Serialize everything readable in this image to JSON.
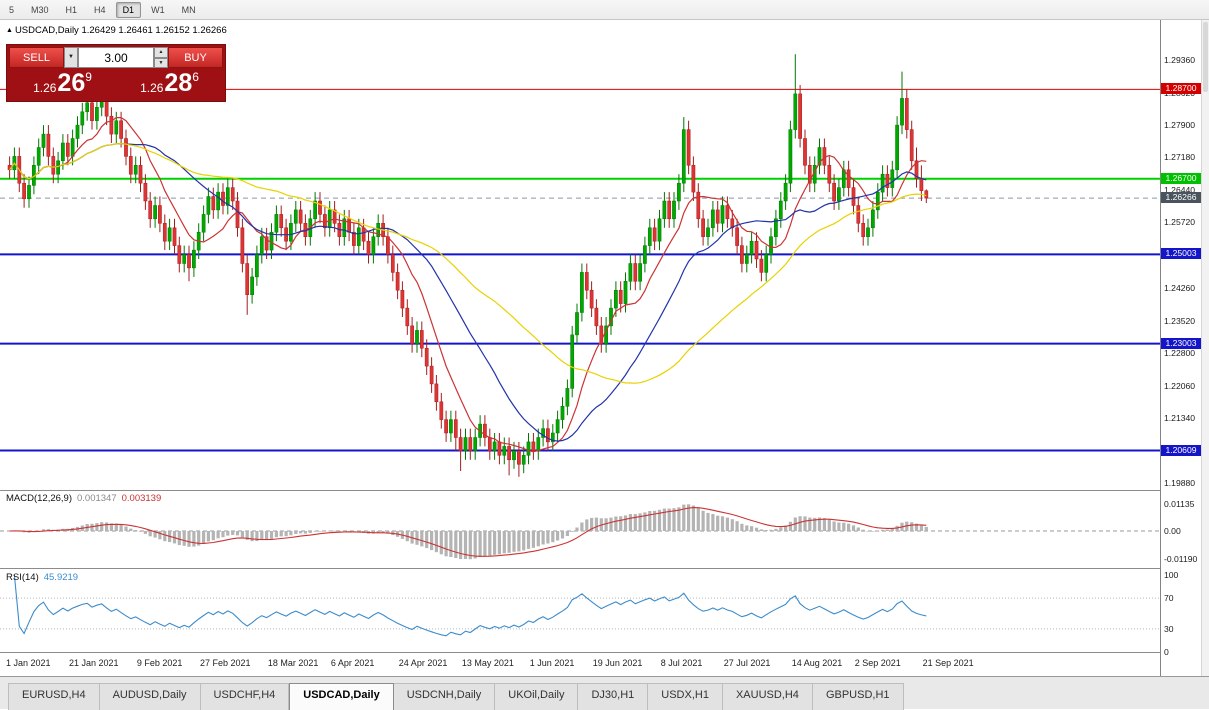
{
  "toolbar": {
    "periods": [
      "5",
      "M30",
      "H1",
      "H4",
      "D1",
      "W1",
      "MN"
    ],
    "active": "D1"
  },
  "chart_header": {
    "icon": "▲",
    "symbol": "USDCAD,Daily",
    "ohlc": "1.26429 1.26461 1.26152 1.26266"
  },
  "trade_panel": {
    "sell_label": "SELL",
    "buy_label": "BUY",
    "volume": "3.00",
    "sell_price": {
      "prefix": "1.26",
      "big": "26",
      "sup": "9"
    },
    "buy_price": {
      "prefix": "1.26",
      "big": "28",
      "sup": "6"
    }
  },
  "indicators": {
    "macd": {
      "label": "MACD(12,26,9)",
      "value1": "0.001347",
      "value2": "0.003139",
      "axis": [
        "0.01135",
        "0.00",
        "-0.01190"
      ]
    },
    "rsi": {
      "label": "RSI(14)",
      "value": "45.9219",
      "axis": [
        "100",
        "70",
        "30",
        "0"
      ],
      "levels": [
        70,
        30
      ]
    }
  },
  "price_axis": {
    "grid_labels": [
      "1.29360",
      "1.28620",
      "1.27900",
      "1.27180",
      "1.26440",
      "1.25720",
      "1.24980",
      "1.24260",
      "1.23520",
      "1.22800",
      "1.22060",
      "1.21340",
      "1.20620",
      "1.19880"
    ],
    "badges": [
      {
        "label": "1.28700",
        "color": "#d40000",
        "text": "#ffffff"
      },
      {
        "label": "1.26700",
        "color": "#00c000",
        "text": "#ffffff"
      },
      {
        "label": "1.26266",
        "color": "#4a545e",
        "text": "#ffffff"
      },
      {
        "label": "1.25003",
        "color": "#1414c8",
        "text": "#ffffff"
      },
      {
        "label": "1.23003",
        "color": "#1414c8",
        "text": "#ffffff"
      },
      {
        "label": "1.20609",
        "color": "#1414c8",
        "text": "#ffffff"
      }
    ]
  },
  "tabs": {
    "items": [
      "EURUSD,H4",
      "AUDUSD,Daily",
      "USDCHF,H4",
      "USDCAD,Daily",
      "USDCNH,Daily",
      "UKOil,Daily",
      "DJ30,H1",
      "USDX,H1",
      "XAUUSD,H4",
      "GBPUSD,H1"
    ],
    "active": "USDCAD,Daily"
  },
  "chart_data": {
    "type": "candlestick",
    "symbol": "USDCAD",
    "timeframe": "Daily",
    "ylim": [
      1.1988,
      1.2936
    ],
    "colors": {
      "bull": "#00a800",
      "bull_edge": "#007800",
      "bear": "#e03434",
      "bear_edge": "#a31d1d",
      "macd_hist": "#b4b4b4",
      "macd_signal": "#cc3333",
      "rsi": "#3c8ccc"
    },
    "levels": [
      {
        "price": 1.287,
        "color": "#e00000",
        "width": 1
      },
      {
        "price": 1.267,
        "color": "#00d200",
        "width": 2
      },
      {
        "price": 1.25003,
        "color": "#1414cc",
        "width": 2
      },
      {
        "price": 1.23003,
        "color": "#1414cc",
        "width": 2
      },
      {
        "price": 1.20609,
        "color": "#1414cc",
        "width": 2
      },
      {
        "price": 1.26266,
        "color": "#8a98a6",
        "width": 1,
        "dashed": true
      }
    ],
    "moving_averages": [
      {
        "period": 10,
        "color": "#cc3333"
      },
      {
        "period": 25,
        "color": "#2233aa"
      },
      {
        "period": 50,
        "color": "#e8d200"
      }
    ],
    "x_ticks": [
      {
        "d": 0,
        "label": "1 Jan 2021"
      },
      {
        "d": 13,
        "label": "21 Jan 2021"
      },
      {
        "d": 27,
        "label": "9 Feb 2021"
      },
      {
        "d": 40,
        "label": "27 Feb 2021"
      },
      {
        "d": 54,
        "label": "18 Mar 2021"
      },
      {
        "d": 67,
        "label": "6 Apr 2021"
      },
      {
        "d": 81,
        "label": "24 Apr 2021"
      },
      {
        "d": 94,
        "label": "13 May 2021"
      },
      {
        "d": 108,
        "label": "1 Jun 2021"
      },
      {
        "d": 121,
        "label": "19 Jun 2021"
      },
      {
        "d": 135,
        "label": "8 Jul 2021"
      },
      {
        "d": 148,
        "label": "27 Jul 2021"
      },
      {
        "d": 162,
        "label": "14 Aug 2021"
      },
      {
        "d": 175,
        "label": "2 Sep 2021"
      },
      {
        "d": 189,
        "label": "21 Sep 2021"
      }
    ],
    "candles": [
      [
        1.27,
        1.272,
        1.267,
        1.269
      ],
      [
        1.269,
        1.274,
        1.267,
        1.272
      ],
      [
        1.272,
        1.274,
        1.264,
        1.266
      ],
      [
        1.266,
        1.268,
        1.2605,
        1.2625
      ],
      [
        1.2625,
        1.2675,
        1.2605,
        1.2655
      ],
      [
        1.2655,
        1.272,
        1.2635,
        1.27
      ],
      [
        1.27,
        1.276,
        1.268,
        1.274
      ],
      [
        1.274,
        1.279,
        1.272,
        1.277
      ],
      [
        1.277,
        1.279,
        1.27,
        1.272
      ],
      [
        1.272,
        1.274,
        1.266,
        1.268
      ],
      [
        1.268,
        1.273,
        1.266,
        1.271
      ],
      [
        1.271,
        1.277,
        1.269,
        1.275
      ],
      [
        1.275,
        1.277,
        1.27,
        1.272
      ],
      [
        1.272,
        1.278,
        1.27,
        1.276
      ],
      [
        1.276,
        1.281,
        1.274,
        1.279
      ],
      [
        1.279,
        1.284,
        1.277,
        1.282
      ],
      [
        1.282,
        1.286,
        1.28,
        1.284
      ],
      [
        1.284,
        1.286,
        1.278,
        1.28
      ],
      [
        1.28,
        1.285,
        1.278,
        1.283
      ],
      [
        1.283,
        1.287,
        1.281,
        1.285
      ],
      [
        1.285,
        1.287,
        1.279,
        1.281
      ],
      [
        1.281,
        1.283,
        1.275,
        1.277
      ],
      [
        1.277,
        1.282,
        1.275,
        1.28
      ],
      [
        1.28,
        1.282,
        1.274,
        1.276
      ],
      [
        1.276,
        1.278,
        1.27,
        1.272
      ],
      [
        1.272,
        1.274,
        1.266,
        1.268
      ],
      [
        1.268,
        1.272,
        1.266,
        1.27
      ],
      [
        1.27,
        1.272,
        1.264,
        1.266
      ],
      [
        1.266,
        1.268,
        1.26,
        1.262
      ],
      [
        1.262,
        1.264,
        1.256,
        1.258
      ],
      [
        1.258,
        1.263,
        1.256,
        1.261
      ],
      [
        1.261,
        1.263,
        1.255,
        1.257
      ],
      [
        1.257,
        1.259,
        1.251,
        1.253
      ],
      [
        1.253,
        1.258,
        1.251,
        1.256
      ],
      [
        1.256,
        1.258,
        1.25,
        1.252
      ],
      [
        1.252,
        1.254,
        1.246,
        1.248
      ],
      [
        1.248,
        1.252,
        1.246,
        1.25
      ],
      [
        1.25,
        1.252,
        1.244,
        1.247
      ],
      [
        1.247,
        1.253,
        1.245,
        1.251
      ],
      [
        1.251,
        1.257,
        1.249,
        1.255
      ],
      [
        1.255,
        1.261,
        1.253,
        1.259
      ],
      [
        1.259,
        1.265,
        1.257,
        1.263
      ],
      [
        1.263,
        1.265,
        1.258,
        1.26
      ],
      [
        1.26,
        1.266,
        1.258,
        1.264
      ],
      [
        1.264,
        1.266,
        1.259,
        1.261
      ],
      [
        1.261,
        1.267,
        1.259,
        1.265
      ],
      [
        1.265,
        1.267,
        1.26,
        1.262
      ],
      [
        1.262,
        1.264,
        1.254,
        1.256
      ],
      [
        1.256,
        1.258,
        1.246,
        1.248
      ],
      [
        1.248,
        1.25,
        1.2365,
        1.241
      ],
      [
        1.241,
        1.247,
        1.239,
        1.245
      ],
      [
        1.245,
        1.252,
        1.243,
        1.25
      ],
      [
        1.25,
        1.256,
        1.248,
        1.254
      ],
      [
        1.254,
        1.256,
        1.249,
        1.251
      ],
      [
        1.251,
        1.257,
        1.249,
        1.255
      ],
      [
        1.255,
        1.261,
        1.253,
        1.259
      ],
      [
        1.259,
        1.261,
        1.254,
        1.256
      ],
      [
        1.256,
        1.258,
        1.251,
        1.253
      ],
      [
        1.253,
        1.259,
        1.251,
        1.257
      ],
      [
        1.257,
        1.262,
        1.255,
        1.26
      ],
      [
        1.26,
        1.262,
        1.255,
        1.257
      ],
      [
        1.257,
        1.259,
        1.252,
        1.254
      ],
      [
        1.254,
        1.26,
        1.252,
        1.258
      ],
      [
        1.258,
        1.264,
        1.256,
        1.262
      ],
      [
        1.262,
        1.264,
        1.257,
        1.259
      ],
      [
        1.259,
        1.261,
        1.254,
        1.256
      ],
      [
        1.256,
        1.262,
        1.254,
        1.26
      ],
      [
        1.26,
        1.262,
        1.255,
        1.257
      ],
      [
        1.257,
        1.259,
        1.252,
        1.254
      ],
      [
        1.254,
        1.26,
        1.252,
        1.258
      ],
      [
        1.258,
        1.26,
        1.253,
        1.255
      ],
      [
        1.255,
        1.257,
        1.25,
        1.252
      ],
      [
        1.252,
        1.258,
        1.25,
        1.256
      ],
      [
        1.256,
        1.258,
        1.251,
        1.253
      ],
      [
        1.253,
        1.255,
        1.248,
        1.25
      ],
      [
        1.25,
        1.256,
        1.248,
        1.254
      ],
      [
        1.254,
        1.259,
        1.252,
        1.257
      ],
      [
        1.257,
        1.259,
        1.252,
        1.254
      ],
      [
        1.254,
        1.256,
        1.248,
        1.25
      ],
      [
        1.25,
        1.252,
        1.244,
        1.246
      ],
      [
        1.246,
        1.248,
        1.24,
        1.242
      ],
      [
        1.242,
        1.244,
        1.236,
        1.238
      ],
      [
        1.238,
        1.24,
        1.232,
        1.234
      ],
      [
        1.234,
        1.236,
        1.228,
        1.23
      ],
      [
        1.23,
        1.235,
        1.228,
        1.233
      ],
      [
        1.233,
        1.235,
        1.227,
        1.229
      ],
      [
        1.229,
        1.231,
        1.223,
        1.225
      ],
      [
        1.225,
        1.227,
        1.219,
        1.221
      ],
      [
        1.221,
        1.223,
        1.215,
        1.217
      ],
      [
        1.217,
        1.219,
        1.211,
        1.213
      ],
      [
        1.213,
        1.215,
        1.208,
        1.21
      ],
      [
        1.21,
        1.215,
        1.208,
        1.213
      ],
      [
        1.213,
        1.215,
        1.206,
        1.209
      ],
      [
        1.209,
        1.211,
        1.2015,
        1.206
      ],
      [
        1.206,
        1.211,
        1.204,
        1.209
      ],
      [
        1.209,
        1.211,
        1.204,
        1.206
      ],
      [
        1.206,
        1.211,
        1.204,
        1.209
      ],
      [
        1.209,
        1.214,
        1.207,
        1.212
      ],
      [
        1.212,
        1.214,
        1.207,
        1.209
      ],
      [
        1.209,
        1.211,
        1.204,
        1.206
      ],
      [
        1.206,
        1.21,
        1.204,
        1.208
      ],
      [
        1.208,
        1.21,
        1.203,
        1.205
      ],
      [
        1.205,
        1.209,
        1.203,
        1.207
      ],
      [
        1.207,
        1.209,
        1.2005,
        1.204
      ],
      [
        1.204,
        1.208,
        1.202,
        1.206
      ],
      [
        1.206,
        1.208,
        1.2002,
        1.203
      ],
      [
        1.203,
        1.207,
        1.201,
        1.205
      ],
      [
        1.205,
        1.21,
        1.203,
        1.208
      ],
      [
        1.208,
        1.21,
        1.204,
        1.206
      ],
      [
        1.206,
        1.211,
        1.204,
        1.209
      ],
      [
        1.209,
        1.213,
        1.207,
        1.211
      ],
      [
        1.211,
        1.213,
        1.206,
        1.208
      ],
      [
        1.208,
        1.212,
        1.206,
        1.21
      ],
      [
        1.21,
        1.215,
        1.208,
        1.213
      ],
      [
        1.213,
        1.218,
        1.211,
        1.216
      ],
      [
        1.216,
        1.222,
        1.214,
        1.22
      ],
      [
        1.22,
        1.234,
        1.218,
        1.232
      ],
      [
        1.232,
        1.239,
        1.23,
        1.237
      ],
      [
        1.237,
        1.248,
        1.235,
        1.246
      ],
      [
        1.246,
        1.248,
        1.24,
        1.242
      ],
      [
        1.242,
        1.244,
        1.236,
        1.238
      ],
      [
        1.238,
        1.24,
        1.232,
        1.234
      ],
      [
        1.234,
        1.236,
        1.228,
        1.23
      ],
      [
        1.23,
        1.236,
        1.228,
        1.234
      ],
      [
        1.234,
        1.24,
        1.232,
        1.238
      ],
      [
        1.238,
        1.244,
        1.236,
        1.242
      ],
      [
        1.242,
        1.244,
        1.237,
        1.239
      ],
      [
        1.239,
        1.246,
        1.237,
        1.244
      ],
      [
        1.244,
        1.25,
        1.242,
        1.248
      ],
      [
        1.248,
        1.25,
        1.242,
        1.244
      ],
      [
        1.244,
        1.25,
        1.242,
        1.248
      ],
      [
        1.248,
        1.254,
        1.246,
        1.252
      ],
      [
        1.252,
        1.258,
        1.25,
        1.256
      ],
      [
        1.256,
        1.258,
        1.251,
        1.253
      ],
      [
        1.253,
        1.26,
        1.251,
        1.258
      ],
      [
        1.258,
        1.264,
        1.256,
        1.262
      ],
      [
        1.262,
        1.264,
        1.256,
        1.258
      ],
      [
        1.258,
        1.264,
        1.256,
        1.262
      ],
      [
        1.262,
        1.268,
        1.26,
        1.266
      ],
      [
        1.266,
        1.2808,
        1.264,
        1.278
      ],
      [
        1.278,
        1.28,
        1.268,
        1.27
      ],
      [
        1.27,
        1.272,
        1.262,
        1.264
      ],
      [
        1.264,
        1.266,
        1.256,
        1.258
      ],
      [
        1.258,
        1.26,
        1.252,
        1.254
      ],
      [
        1.254,
        1.258,
        1.252,
        1.256
      ],
      [
        1.256,
        1.262,
        1.254,
        1.26
      ],
      [
        1.26,
        1.262,
        1.255,
        1.257
      ],
      [
        1.257,
        1.263,
        1.255,
        1.261
      ],
      [
        1.261,
        1.263,
        1.256,
        1.258
      ],
      [
        1.258,
        1.26,
        1.254,
        1.256
      ],
      [
        1.256,
        1.258,
        1.25,
        1.252
      ],
      [
        1.252,
        1.254,
        1.246,
        1.248
      ],
      [
        1.248,
        1.252,
        1.246,
        1.25
      ],
      [
        1.25,
        1.255,
        1.248,
        1.253
      ],
      [
        1.253,
        1.255,
        1.247,
        1.249
      ],
      [
        1.249,
        1.251,
        1.244,
        1.246
      ],
      [
        1.246,
        1.252,
        1.244,
        1.25
      ],
      [
        1.25,
        1.256,
        1.248,
        1.254
      ],
      [
        1.254,
        1.26,
        1.252,
        1.258
      ],
      [
        1.258,
        1.264,
        1.256,
        1.262
      ],
      [
        1.262,
        1.268,
        1.26,
        1.266
      ],
      [
        1.266,
        1.28,
        1.264,
        1.278
      ],
      [
        1.278,
        1.2949,
        1.276,
        1.286
      ],
      [
        1.286,
        1.288,
        1.274,
        1.276
      ],
      [
        1.276,
        1.278,
        1.268,
        1.27
      ],
      [
        1.27,
        1.272,
        1.264,
        1.266
      ],
      [
        1.266,
        1.272,
        1.264,
        1.27
      ],
      [
        1.27,
        1.276,
        1.268,
        1.274
      ],
      [
        1.274,
        1.276,
        1.268,
        1.27
      ],
      [
        1.27,
        1.272,
        1.264,
        1.266
      ],
      [
        1.266,
        1.268,
        1.26,
        1.262
      ],
      [
        1.262,
        1.267,
        1.26,
        1.265
      ],
      [
        1.265,
        1.271,
        1.263,
        1.269
      ],
      [
        1.269,
        1.271,
        1.263,
        1.265
      ],
      [
        1.265,
        1.267,
        1.259,
        1.261
      ],
      [
        1.261,
        1.263,
        1.255,
        1.257
      ],
      [
        1.257,
        1.259,
        1.252,
        1.254
      ],
      [
        1.254,
        1.258,
        1.252,
        1.256
      ],
      [
        1.256,
        1.262,
        1.254,
        1.26
      ],
      [
        1.26,
        1.266,
        1.258,
        1.264
      ],
      [
        1.264,
        1.27,
        1.262,
        1.268
      ],
      [
        1.268,
        1.27,
        1.263,
        1.265
      ],
      [
        1.265,
        1.271,
        1.263,
        1.269
      ],
      [
        1.269,
        1.281,
        1.267,
        1.279
      ],
      [
        1.279,
        1.291,
        1.277,
        1.285
      ],
      [
        1.285,
        1.287,
        1.276,
        1.278
      ],
      [
        1.278,
        1.28,
        1.269,
        1.271
      ],
      [
        1.271,
        1.274,
        1.265,
        1.267
      ],
      [
        1.267,
        1.27,
        1.262,
        1.2643
      ],
      [
        1.26429,
        1.26461,
        1.26152,
        1.26266
      ]
    ]
  }
}
